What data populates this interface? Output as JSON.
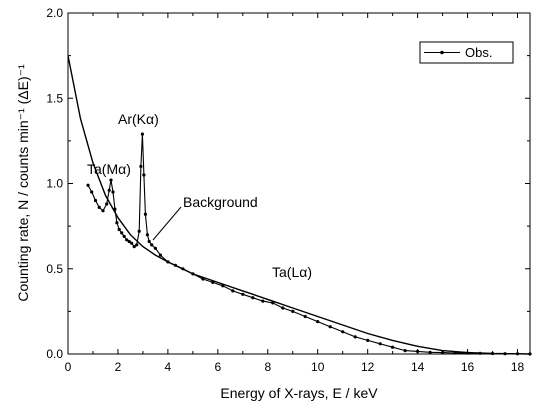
{
  "chart_data": {
    "type": "line",
    "xlabel": "Energy of X-rays, E / keV",
    "ylabel": "Counting rate, N / counts min⁻¹ (ΔE)⁻¹",
    "xlim": [
      0,
      18.5
    ],
    "ylim": [
      0,
      2.0
    ],
    "x_ticks": [
      0,
      2,
      4,
      6,
      8,
      10,
      12,
      14,
      16,
      18
    ],
    "y_ticks": [
      0.0,
      0.5,
      1.0,
      1.5,
      2.0
    ],
    "x_tick_labels": [
      "0",
      "2",
      "4",
      "6",
      "8",
      "10",
      "12",
      "14",
      "16",
      "18"
    ],
    "y_tick_labels": [
      "0.0",
      "0.5",
      "1.0",
      "1.5",
      "2.0"
    ],
    "grid": false,
    "legend": {
      "position": "top-right",
      "entries": [
        "Obs."
      ]
    },
    "annotations": [
      {
        "text": "Ar(Kα)",
        "x": 2.95,
        "y": 1.29
      },
      {
        "text": "Ta(Mα)",
        "x": 1.7,
        "y": 1.01
      },
      {
        "text": "Background",
        "x": 3.3,
        "y": 0.66
      },
      {
        "text": "Ta(Lα)",
        "x": 8.2,
        "y": 0.29
      }
    ],
    "series": [
      {
        "name": "Obs.",
        "style": "line-with-dots",
        "x": [
          0.8,
          0.95,
          1.1,
          1.25,
          1.4,
          1.55,
          1.65,
          1.72,
          1.8,
          1.88,
          1.96,
          2.05,
          2.15,
          2.25,
          2.35,
          2.45,
          2.55,
          2.65,
          2.75,
          2.85,
          2.92,
          2.98,
          3.04,
          3.1,
          3.18,
          3.25,
          3.35,
          3.5,
          3.7,
          4.0,
          4.3,
          4.6,
          5.0,
          5.4,
          5.8,
          6.2,
          6.6,
          7.0,
          7.4,
          7.8,
          8.2,
          8.6,
          9.0,
          9.5,
          10.0,
          10.5,
          11.0,
          11.5,
          12.0,
          12.5,
          13.0,
          13.5,
          14.0,
          14.5,
          15.0,
          15.5,
          16.0,
          16.5,
          17.0,
          17.5,
          18.0,
          18.5
        ],
        "y": [
          0.99,
          0.95,
          0.9,
          0.86,
          0.84,
          0.88,
          0.96,
          1.02,
          0.95,
          0.85,
          0.77,
          0.73,
          0.71,
          0.69,
          0.67,
          0.66,
          0.65,
          0.63,
          0.64,
          0.72,
          1.1,
          1.29,
          1.05,
          0.82,
          0.7,
          0.66,
          0.64,
          0.62,
          0.58,
          0.54,
          0.52,
          0.5,
          0.47,
          0.44,
          0.42,
          0.4,
          0.37,
          0.35,
          0.33,
          0.31,
          0.3,
          0.27,
          0.25,
          0.22,
          0.19,
          0.16,
          0.13,
          0.1,
          0.08,
          0.06,
          0.04,
          0.02,
          0.015,
          0.01,
          0.008,
          0.006,
          0.005,
          0.004,
          0.003,
          0.002,
          0.001,
          0.0
        ]
      },
      {
        "name": "Background",
        "style": "line",
        "x": [
          0.0,
          0.5,
          1.0,
          1.5,
          2.0,
          2.5,
          3.0,
          3.5,
          4.0,
          5.0,
          6.0,
          7.0,
          8.0,
          9.0,
          10.0,
          11.0,
          12.0,
          13.0,
          14.0,
          15.0,
          16.0,
          17.0,
          18.0,
          18.5
        ],
        "y": [
          1.75,
          1.38,
          1.12,
          0.93,
          0.8,
          0.7,
          0.63,
          0.58,
          0.54,
          0.47,
          0.42,
          0.37,
          0.32,
          0.27,
          0.22,
          0.17,
          0.12,
          0.08,
          0.045,
          0.02,
          0.008,
          0.003,
          0.001,
          0.0
        ]
      }
    ]
  }
}
